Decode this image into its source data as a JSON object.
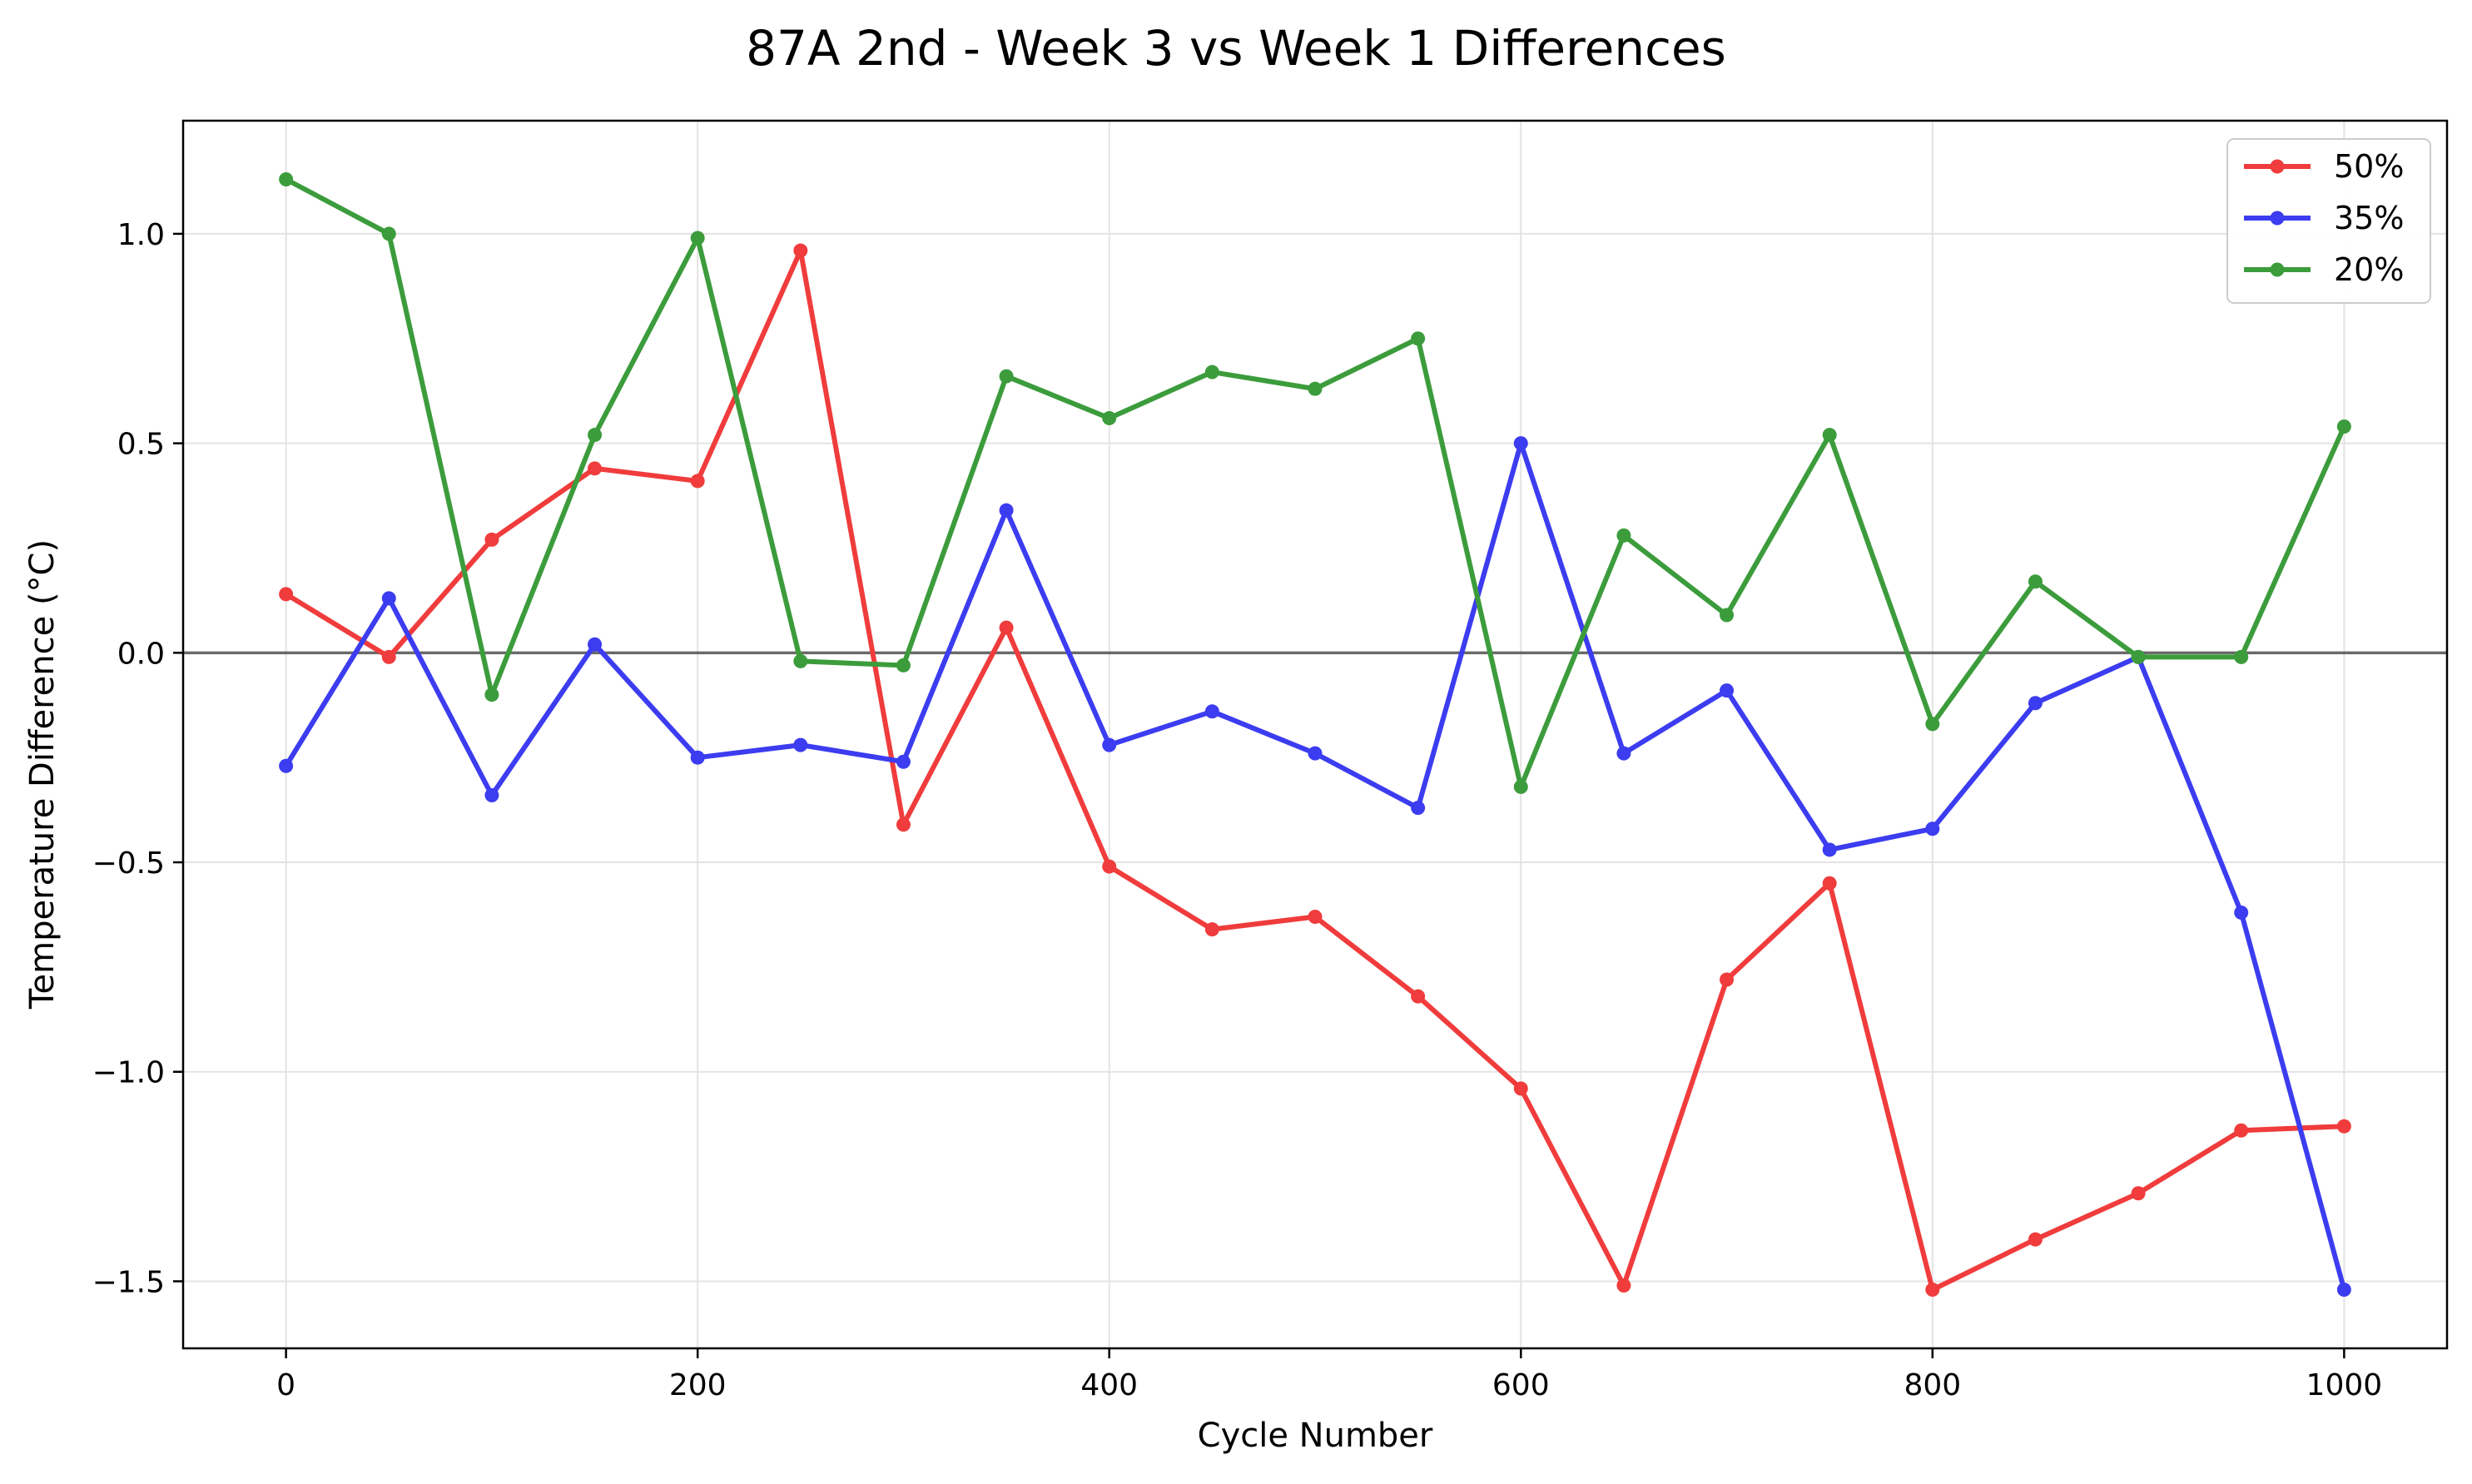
{
  "chart_data": {
    "type": "line",
    "title": "87A 2nd - Week 3 vs Week 1 Differences",
    "xlabel": "Cycle Number",
    "ylabel": "Temperature Difference (°C)",
    "x": [
      0,
      50,
      100,
      150,
      200,
      250,
      300,
      350,
      400,
      450,
      500,
      550,
      600,
      650,
      700,
      750,
      800,
      850,
      900,
      950,
      1000
    ],
    "xlim": [
      -50,
      1050
    ],
    "ylim": [
      -1.66,
      1.27
    ],
    "xticks": [
      0,
      200,
      400,
      600,
      800,
      1000
    ],
    "xtick_labels": [
      "0",
      "200",
      "400",
      "600",
      "800",
      "1000"
    ],
    "yticks": [
      1.0,
      0.5,
      0.0,
      -0.5,
      -1.0,
      -1.5
    ],
    "ytick_labels": [
      "1.0",
      "0.5",
      "0.0",
      "−0.5",
      "−1.0",
      "−1.5"
    ],
    "grid": true,
    "zero_line": true,
    "legend_position": "upper right",
    "series": [
      {
        "name": "50%",
        "color": "#f03c3c",
        "values": [
          0.14,
          -0.01,
          0.27,
          0.44,
          0.41,
          0.96,
          -0.41,
          0.06,
          -0.51,
          -0.66,
          -0.63,
          -0.82,
          -1.04,
          -1.51,
          -0.78,
          -0.55,
          -1.52,
          -1.4,
          -1.29,
          -1.14,
          -1.13
        ]
      },
      {
        "name": "35%",
        "color": "#3c3cf0",
        "values": [
          -0.27,
          0.13,
          -0.34,
          0.02,
          -0.25,
          -0.22,
          -0.26,
          0.34,
          -0.22,
          -0.14,
          -0.24,
          -0.37,
          0.5,
          -0.24,
          -0.09,
          -0.47,
          -0.42,
          -0.12,
          -0.01,
          -0.62,
          -1.52
        ]
      },
      {
        "name": "20%",
        "color": "#3c9c3c",
        "values": [
          1.13,
          1.0,
          -0.1,
          0.52,
          0.99,
          -0.02,
          -0.03,
          0.66,
          0.56,
          0.67,
          0.63,
          0.75,
          -0.32,
          0.28,
          0.09,
          0.52,
          -0.17,
          0.17,
          -0.01,
          -0.01,
          0.54
        ]
      }
    ]
  }
}
